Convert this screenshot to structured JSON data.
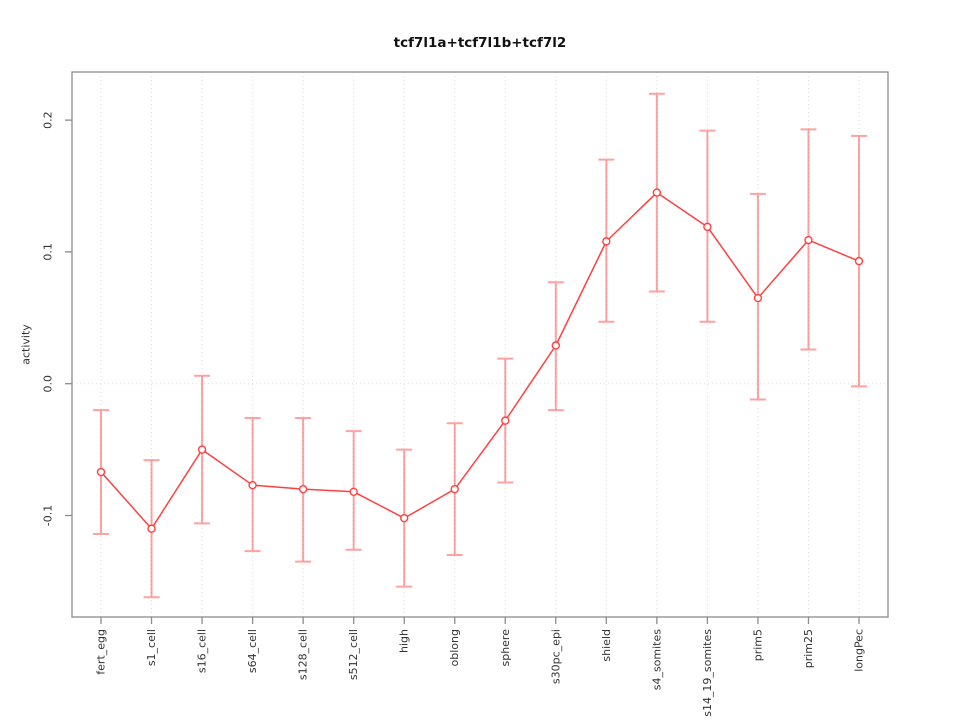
{
  "chart_data": {
    "type": "line",
    "title": "tcf7l1a+tcf7l1b+tcf7l2",
    "xlabel": "",
    "ylabel": "activity",
    "legend": "none",
    "grid": {
      "vertical_per_category": true,
      "horizontal_zero_line": true,
      "style": "dotted"
    },
    "categories": [
      "fert_egg",
      "s1_cell",
      "s16_cell",
      "s64_cell",
      "s128_cell",
      "s512_cell",
      "high",
      "oblong",
      "sphere",
      "s30pc_epi",
      "shield",
      "s4_somites",
      "s14_19_somites",
      "prim5",
      "prim25",
      "longPec"
    ],
    "series": [
      {
        "name": "activity",
        "values": [
          -0.067,
          -0.11,
          -0.05,
          -0.077,
          -0.08,
          -0.082,
          -0.102,
          -0.08,
          -0.028,
          0.029,
          0.108,
          0.145,
          0.119,
          0.065,
          0.109,
          0.093
        ],
        "err_low": [
          -0.114,
          -0.162,
          -0.106,
          -0.127,
          -0.135,
          -0.126,
          -0.154,
          -0.13,
          -0.075,
          -0.02,
          0.047,
          0.07,
          0.047,
          -0.012,
          0.026,
          -0.002
        ],
        "err_high": [
          -0.02,
          -0.058,
          0.006,
          -0.026,
          -0.026,
          -0.036,
          -0.05,
          -0.03,
          0.019,
          0.077,
          0.17,
          0.22,
          0.192,
          0.144,
          0.193,
          0.188
        ]
      }
    ],
    "yticks": [
      -0.1,
      0,
      0.1,
      0.2
    ],
    "ylim": [
      -0.177,
      0.2365
    ],
    "tick_label_rotation_deg": 90,
    "colors": {
      "line": "#ff4040",
      "point_stroke": "#ff4040",
      "point_fill": "#ffffff",
      "error_bar": "#ff5555",
      "gridline": "#dcdcdc",
      "axis": "#8c8c8c",
      "text": "#333333",
      "title": "#111111",
      "background": "#ffffff"
    }
  }
}
